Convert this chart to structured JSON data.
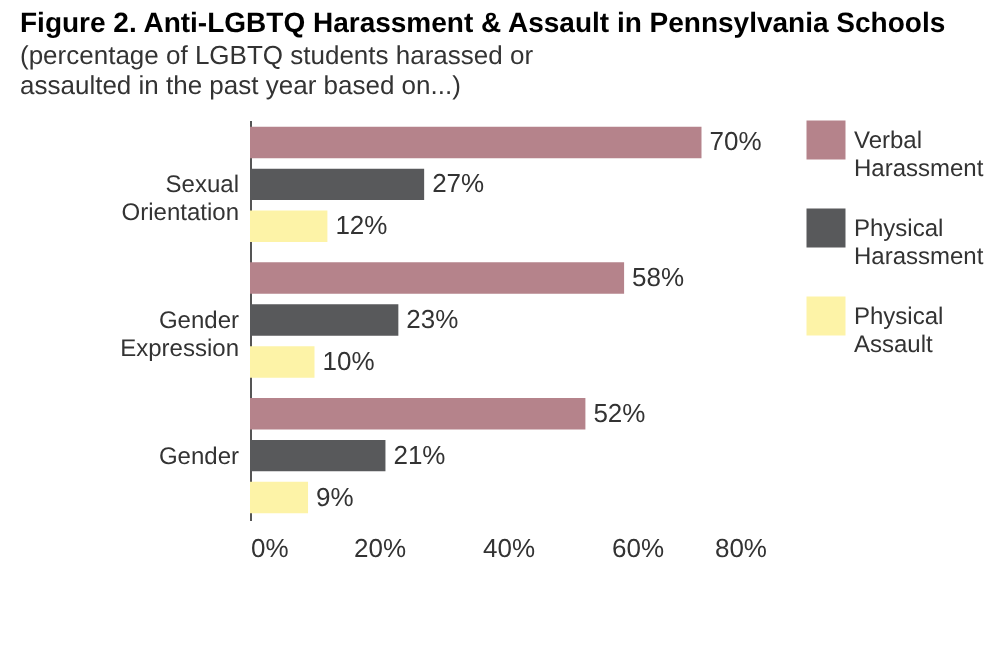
{
  "chart_data": {
    "type": "bar",
    "orientation": "horizontal",
    "title": "Figure 2. Anti-LGBTQ Harassment & Assault in Pennsylvania Schools",
    "subtitle": "(percentage of LGBTQ students harassed or assaulted in the past year based on...)",
    "categories": [
      "Sexual Orientation",
      "Gender Expression",
      "Gender"
    ],
    "series": [
      {
        "name": "Verbal Harassment",
        "color": "#b5838b",
        "values": [
          70,
          58,
          52
        ],
        "value_labels": [
          "70%",
          "58%",
          "52%"
        ]
      },
      {
        "name": "Physical Harassment",
        "color": "#58595b",
        "values": [
          27,
          23,
          21
        ],
        "value_labels": [
          "27%",
          "23%",
          "21%"
        ]
      },
      {
        "name": "Physical Assault",
        "color": "#fdf3a7",
        "values": [
          12,
          10,
          9
        ],
        "value_labels": [
          "12%",
          "10%",
          "9%"
        ]
      }
    ],
    "xlim": [
      0,
      80
    ],
    "xticks": [
      {
        "value": 0,
        "label": "0%"
      },
      {
        "value": 20,
        "label": "20%"
      },
      {
        "value": 40,
        "label": "40%"
      },
      {
        "value": 60,
        "label": "60%"
      },
      {
        "value": 80,
        "label": "80%"
      }
    ],
    "grid": false,
    "legend": "right"
  }
}
